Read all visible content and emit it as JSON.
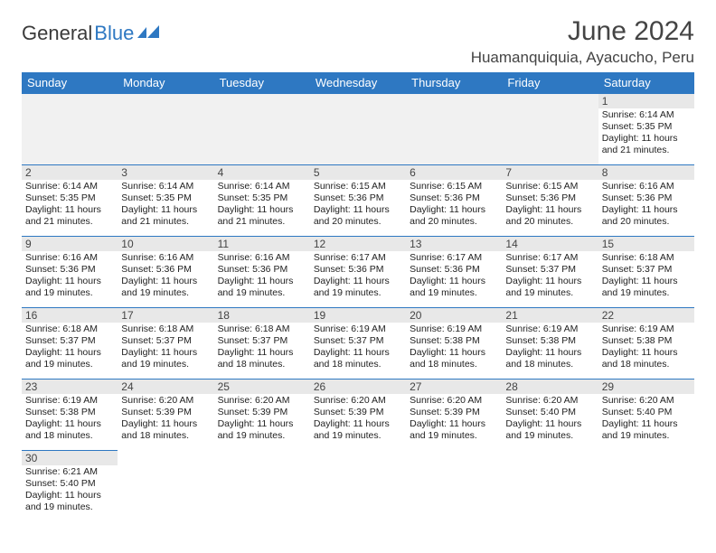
{
  "logo": {
    "text1": "General",
    "text2": "Blue"
  },
  "title": "June 2024",
  "location": "Huamanquiquia, Ayacucho, Peru",
  "colors": {
    "header_bg": "#2e78c2",
    "header_fg": "#ffffff",
    "daynum_bg": "#e8e8e8",
    "border": "#2e78c2",
    "text": "#222222"
  },
  "weekdays": [
    "Sunday",
    "Monday",
    "Tuesday",
    "Wednesday",
    "Thursday",
    "Friday",
    "Saturday"
  ],
  "weeks": [
    [
      {
        "n": "",
        "sr": "",
        "ss": "",
        "dl": ""
      },
      {
        "n": "",
        "sr": "",
        "ss": "",
        "dl": ""
      },
      {
        "n": "",
        "sr": "",
        "ss": "",
        "dl": ""
      },
      {
        "n": "",
        "sr": "",
        "ss": "",
        "dl": ""
      },
      {
        "n": "",
        "sr": "",
        "ss": "",
        "dl": ""
      },
      {
        "n": "",
        "sr": "",
        "ss": "",
        "dl": ""
      },
      {
        "n": "1",
        "sr": "6:14 AM",
        "ss": "5:35 PM",
        "dl": "11 hours and 21 minutes."
      }
    ],
    [
      {
        "n": "2",
        "sr": "6:14 AM",
        "ss": "5:35 PM",
        "dl": "11 hours and 21 minutes."
      },
      {
        "n": "3",
        "sr": "6:14 AM",
        "ss": "5:35 PM",
        "dl": "11 hours and 21 minutes."
      },
      {
        "n": "4",
        "sr": "6:14 AM",
        "ss": "5:35 PM",
        "dl": "11 hours and 21 minutes."
      },
      {
        "n": "5",
        "sr": "6:15 AM",
        "ss": "5:36 PM",
        "dl": "11 hours and 20 minutes."
      },
      {
        "n": "6",
        "sr": "6:15 AM",
        "ss": "5:36 PM",
        "dl": "11 hours and 20 minutes."
      },
      {
        "n": "7",
        "sr": "6:15 AM",
        "ss": "5:36 PM",
        "dl": "11 hours and 20 minutes."
      },
      {
        "n": "8",
        "sr": "6:16 AM",
        "ss": "5:36 PM",
        "dl": "11 hours and 20 minutes."
      }
    ],
    [
      {
        "n": "9",
        "sr": "6:16 AM",
        "ss": "5:36 PM",
        "dl": "11 hours and 19 minutes."
      },
      {
        "n": "10",
        "sr": "6:16 AM",
        "ss": "5:36 PM",
        "dl": "11 hours and 19 minutes."
      },
      {
        "n": "11",
        "sr": "6:16 AM",
        "ss": "5:36 PM",
        "dl": "11 hours and 19 minutes."
      },
      {
        "n": "12",
        "sr": "6:17 AM",
        "ss": "5:36 PM",
        "dl": "11 hours and 19 minutes."
      },
      {
        "n": "13",
        "sr": "6:17 AM",
        "ss": "5:36 PM",
        "dl": "11 hours and 19 minutes."
      },
      {
        "n": "14",
        "sr": "6:17 AM",
        "ss": "5:37 PM",
        "dl": "11 hours and 19 minutes."
      },
      {
        "n": "15",
        "sr": "6:18 AM",
        "ss": "5:37 PM",
        "dl": "11 hours and 19 minutes."
      }
    ],
    [
      {
        "n": "16",
        "sr": "6:18 AM",
        "ss": "5:37 PM",
        "dl": "11 hours and 19 minutes."
      },
      {
        "n": "17",
        "sr": "6:18 AM",
        "ss": "5:37 PM",
        "dl": "11 hours and 19 minutes."
      },
      {
        "n": "18",
        "sr": "6:18 AM",
        "ss": "5:37 PM",
        "dl": "11 hours and 18 minutes."
      },
      {
        "n": "19",
        "sr": "6:19 AM",
        "ss": "5:37 PM",
        "dl": "11 hours and 18 minutes."
      },
      {
        "n": "20",
        "sr": "6:19 AM",
        "ss": "5:38 PM",
        "dl": "11 hours and 18 minutes."
      },
      {
        "n": "21",
        "sr": "6:19 AM",
        "ss": "5:38 PM",
        "dl": "11 hours and 18 minutes."
      },
      {
        "n": "22",
        "sr": "6:19 AM",
        "ss": "5:38 PM",
        "dl": "11 hours and 18 minutes."
      }
    ],
    [
      {
        "n": "23",
        "sr": "6:19 AM",
        "ss": "5:38 PM",
        "dl": "11 hours and 18 minutes."
      },
      {
        "n": "24",
        "sr": "6:20 AM",
        "ss": "5:39 PM",
        "dl": "11 hours and 18 minutes."
      },
      {
        "n": "25",
        "sr": "6:20 AM",
        "ss": "5:39 PM",
        "dl": "11 hours and 19 minutes."
      },
      {
        "n": "26",
        "sr": "6:20 AM",
        "ss": "5:39 PM",
        "dl": "11 hours and 19 minutes."
      },
      {
        "n": "27",
        "sr": "6:20 AM",
        "ss": "5:39 PM",
        "dl": "11 hours and 19 minutes."
      },
      {
        "n": "28",
        "sr": "6:20 AM",
        "ss": "5:40 PM",
        "dl": "11 hours and 19 minutes."
      },
      {
        "n": "29",
        "sr": "6:20 AM",
        "ss": "5:40 PM",
        "dl": "11 hours and 19 minutes."
      }
    ],
    [
      {
        "n": "30",
        "sr": "6:21 AM",
        "ss": "5:40 PM",
        "dl": "11 hours and 19 minutes."
      },
      {
        "n": "",
        "sr": "",
        "ss": "",
        "dl": ""
      },
      {
        "n": "",
        "sr": "",
        "ss": "",
        "dl": ""
      },
      {
        "n": "",
        "sr": "",
        "ss": "",
        "dl": ""
      },
      {
        "n": "",
        "sr": "",
        "ss": "",
        "dl": ""
      },
      {
        "n": "",
        "sr": "",
        "ss": "",
        "dl": ""
      },
      {
        "n": "",
        "sr": "",
        "ss": "",
        "dl": ""
      }
    ]
  ],
  "labels": {
    "sunrise": "Sunrise:",
    "sunset": "Sunset:",
    "daylight": "Daylight:"
  }
}
